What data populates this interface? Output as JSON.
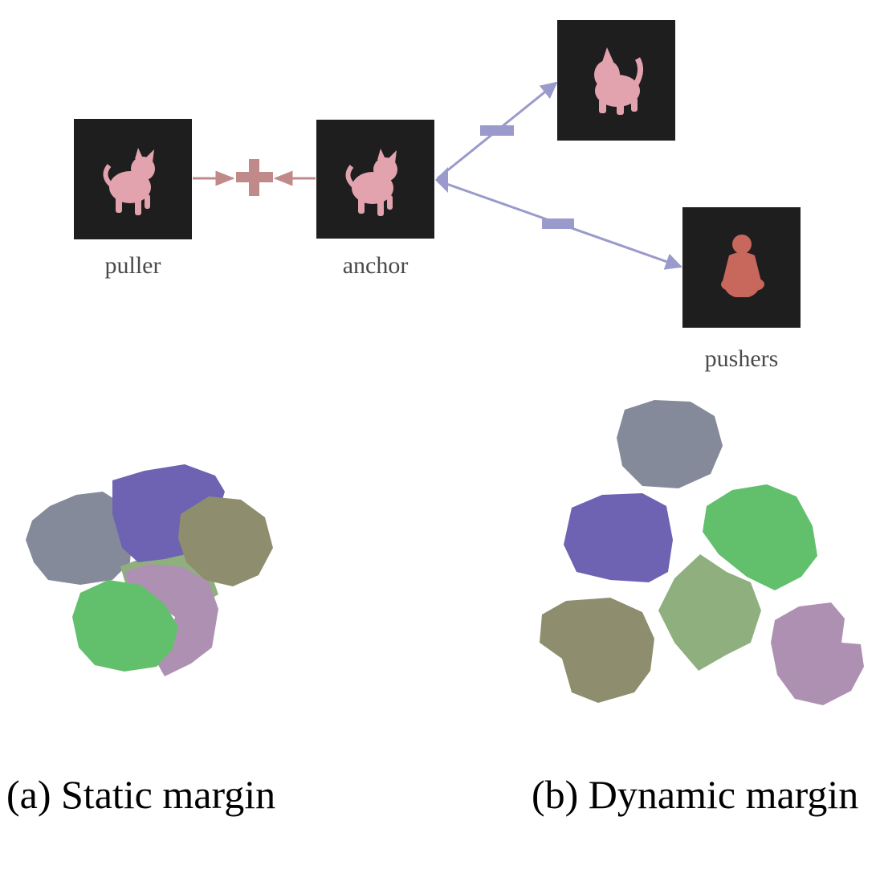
{
  "top_diagram": {
    "labels": {
      "puller": "puller",
      "anchor": "anchor",
      "pushers": "pushers"
    },
    "pull_sign": "+",
    "push_sign": "−",
    "colors": {
      "tile_background": "#1e1e1e",
      "pull_arrow": "#c08a8a",
      "push_arrow": "#9a9acc",
      "cat_figure": "#e3a3ae",
      "figurine": "#c8675c"
    }
  },
  "panels": [
    {
      "caption": "(a) Static margin"
    },
    {
      "caption": "(b) Dynamic margin"
    }
  ],
  "cluster_colors": {
    "gray": "#858a9a",
    "purple": "#6e63b3",
    "olive": "#8e8e6e",
    "green": "#62c06c",
    "light_green": "#8fb07e",
    "mauve": "#ae90b2"
  }
}
